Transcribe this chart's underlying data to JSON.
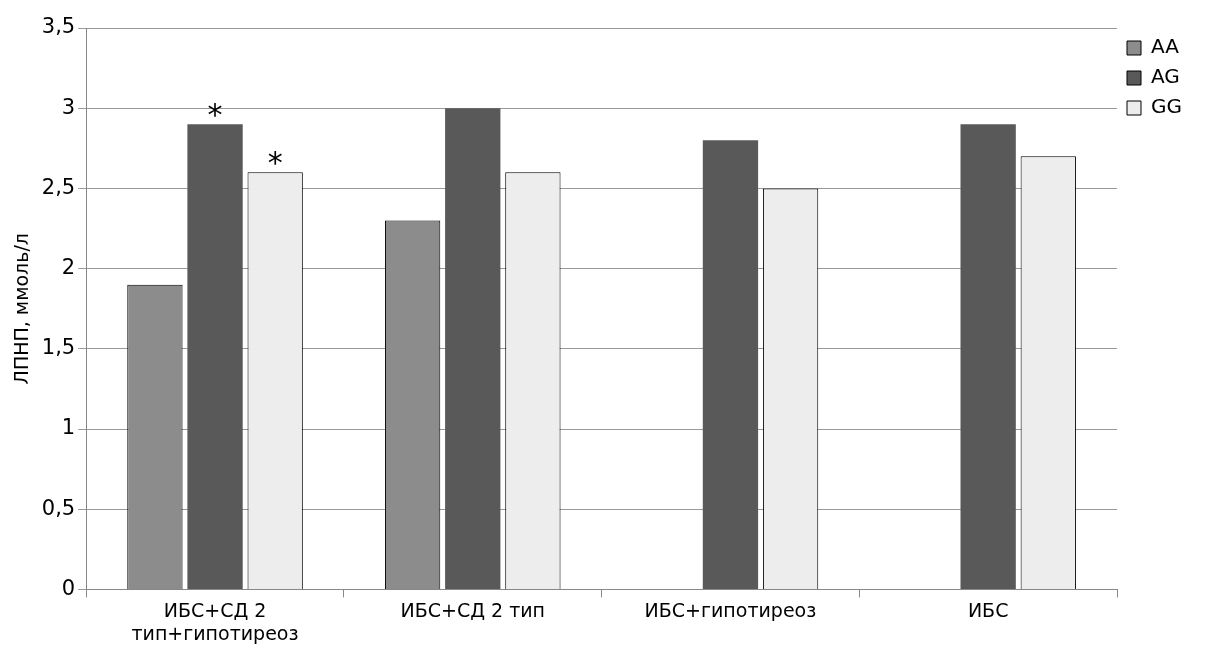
{
  "chart_data": {
    "type": "bar",
    "ylabel": "ЛПНП, ммоль/л",
    "categories": [
      "ИБС+СД 2 тип+гипотиреоз",
      "ИБС+СД 2 тип",
      "ИБС+гипотиреоз",
      "ИБС"
    ],
    "series": [
      {
        "name": "AA",
        "color": "#8c8c8c",
        "values": [
          1.9,
          2.3,
          null,
          null
        ]
      },
      {
        "name": "AG",
        "color": "#595959",
        "values": [
          2.9,
          3.0,
          2.8,
          2.9
        ]
      },
      {
        "name": "GG",
        "color": "#ededed",
        "values": [
          2.6,
          2.6,
          2.5,
          2.7
        ]
      }
    ],
    "ylim": [
      0,
      3.5
    ],
    "yticks": [
      0,
      {
        "value": 0.5,
        "label": "0,5"
      },
      1,
      {
        "value": 1.5,
        "label": "1,5"
      },
      2,
      {
        "value": 2.5,
        "label": "2,5"
      },
      3,
      {
        "value": 3.5,
        "label": "3,5"
      }
    ],
    "grid": "y",
    "legend": "right",
    "annotations": [
      {
        "text": "*",
        "x": "ИБС+СД 2 тип+гипотиреоз",
        "y": 2.9
      },
      "*"
    ]
  }
}
